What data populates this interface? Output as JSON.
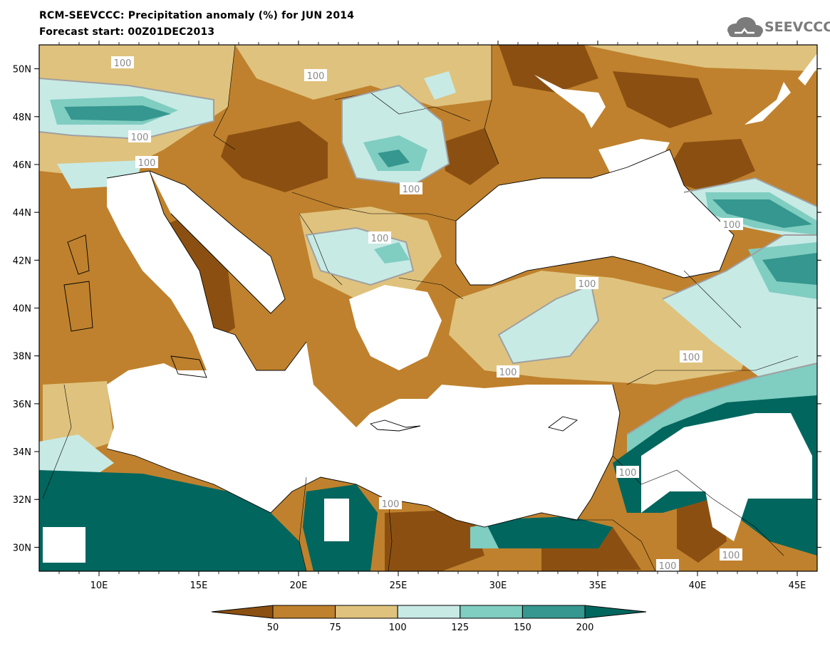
{
  "title": {
    "line1": "RCM-SEEVCCC: Precipitation anomaly (%) for JUN 2014",
    "line2": "Forecast start: 00Z01DEC2013"
  },
  "logo": {
    "text": "SEEVCCC",
    "icon": "cloud-icon"
  },
  "map": {
    "projection": "lat-lon",
    "lon_range": [
      7,
      46
    ],
    "lat_range": [
      29,
      51
    ],
    "lat_ticks": [
      "50N",
      "48N",
      "46N",
      "44N",
      "42N",
      "40N",
      "38N",
      "36N",
      "34N",
      "32N",
      "30N"
    ],
    "lon_ticks": [
      "10E",
      "15E",
      "20E",
      "25E",
      "30E",
      "35E",
      "40E",
      "45E"
    ],
    "contour_labels": [
      "100",
      "100",
      "100",
      "100",
      "100",
      "100",
      "100",
      "100",
      "100",
      "100",
      "100",
      "100",
      "100",
      "100"
    ]
  },
  "colorbar": {
    "levels": [
      "50",
      "75",
      "100",
      "125",
      "150",
      "200"
    ],
    "colors": [
      "#8b5011",
      "#bf812d",
      "#dfc27d",
      "#c7eae5",
      "#80cdc1",
      "#35978f",
      "#01665e"
    ]
  },
  "colors": {
    "sea": "#ffffff",
    "very_dry": "#8b5011",
    "dry": "#bf812d",
    "slightly_dry": "#dfc27d",
    "slightly_wet": "#c7eae5",
    "wet": "#80cdc1",
    "very_wet": "#35978f",
    "extreme_wet": "#01665e"
  }
}
